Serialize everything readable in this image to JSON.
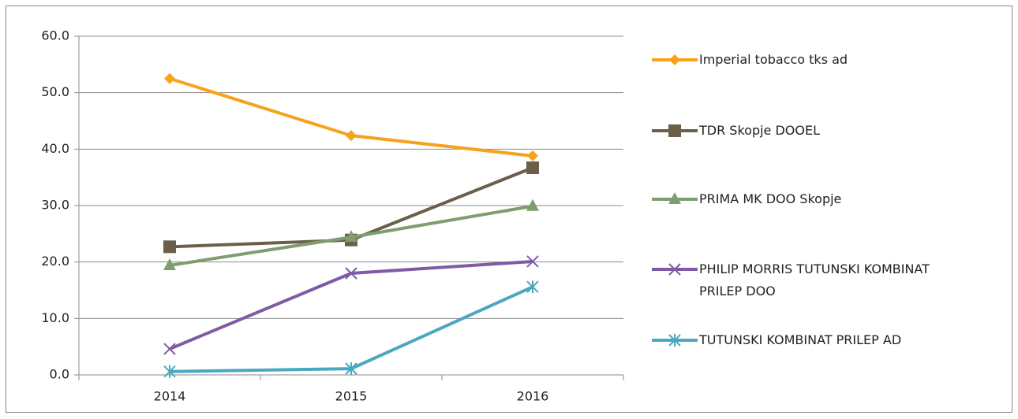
{
  "chart_data": {
    "type": "line",
    "categories": [
      "2014",
      "2015",
      "2016"
    ],
    "series": [
      {
        "name": "Imperial tobacco tks ad",
        "color": "#f7a21b",
        "marker": "diamond",
        "values": [
          52.5,
          42.4,
          38.8
        ]
      },
      {
        "name": "TDR Skopje DOOEL",
        "color": "#6b5f4b",
        "marker": "square",
        "values": [
          22.7,
          23.9,
          36.7
        ]
      },
      {
        "name": "PRIMA MK DOO Skopje",
        "color": "#7f9e6f",
        "marker": "triangle",
        "values": [
          19.4,
          24.4,
          29.9
        ]
      },
      {
        "name": "PHILIP MORRIS TUTUNSKI KOMBINAT PRILEP DOO",
        "color": "#7f5ba6",
        "marker": "x",
        "values": [
          4.6,
          18.0,
          20.1
        ]
      },
      {
        "name": "TUTUNSKI KOMBINAT PRILEP AD",
        "color": "#4aa8c0",
        "marker": "asterisk",
        "values": [
          0.6,
          1.1,
          15.6
        ]
      }
    ],
    "ylim": [
      0,
      60
    ],
    "yticks": [
      {
        "value": 0,
        "label": "0.0"
      },
      {
        "value": 10,
        "label": "10.0"
      },
      {
        "value": 20,
        "label": "20.0"
      },
      {
        "value": 30,
        "label": "30.0"
      },
      {
        "value": 40,
        "label": "40.0"
      },
      {
        "value": 50,
        "label": "50.0"
      },
      {
        "value": 60,
        "label": "60.0"
      }
    ],
    "grid": true,
    "legend": "right"
  }
}
